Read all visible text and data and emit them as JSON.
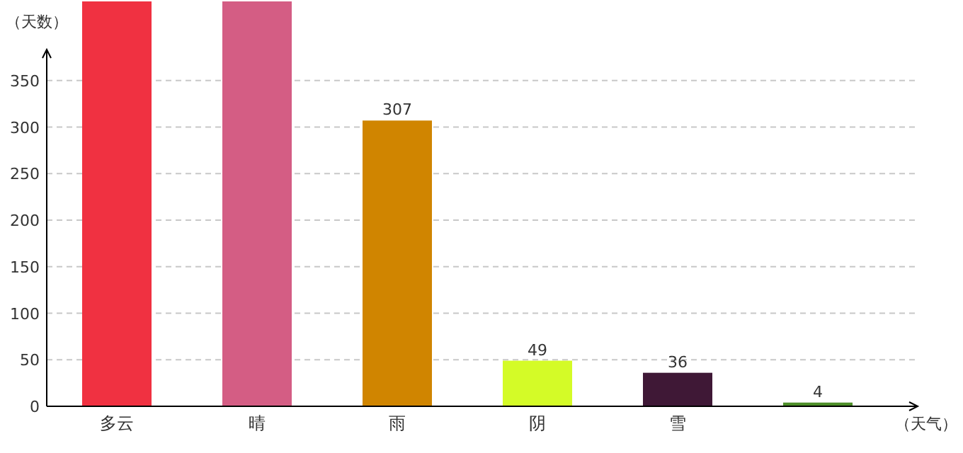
{
  "chart_data": {
    "type": "bar",
    "xlabel": "（天气）",
    "ylabel": "（天数）",
    "categories": [
      "多云",
      "晴",
      "雨",
      "阴",
      "雪",
      null
    ],
    "values": [
      435,
      435,
      307,
      49,
      36,
      4
    ],
    "colors": [
      "#f03141",
      "#d45d84",
      "#d08500",
      "#d4fb27",
      "#3f1836",
      "#4e8f2a"
    ],
    "value_labels": [
      null,
      null,
      "307",
      "49",
      "36",
      "4"
    ],
    "ylim": [
      0,
      435
    ],
    "yticks": [
      0,
      50,
      100,
      150,
      200,
      250,
      300,
      350
    ],
    "grid": "y"
  }
}
